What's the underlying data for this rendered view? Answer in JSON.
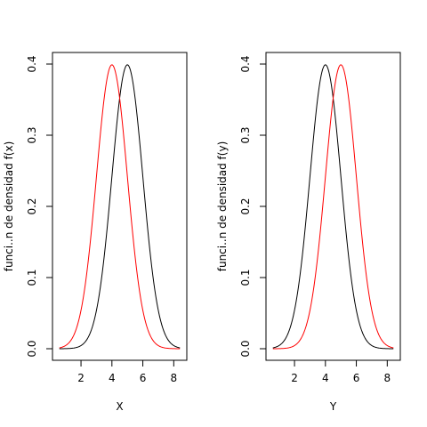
{
  "chart_data": [
    {
      "type": "line",
      "xlabel": "X",
      "ylabel": "funci..n de densidad f(x)",
      "xlim": [
        0.5,
        8.5
      ],
      "ylim": [
        0,
        0.4
      ],
      "xticks": [
        "2",
        "4",
        "6",
        "8"
      ],
      "yticks": [
        "0.0",
        "0.1",
        "0.2",
        "0.3",
        "0.4"
      ],
      "series": [
        {
          "color": "#000000",
          "mean": 5,
          "sd": 1,
          "x_range": [
            0.6,
            8.4
          ]
        },
        {
          "color": "#ff0000",
          "mean": 4,
          "sd": 1,
          "x_range": [
            0.6,
            8.4
          ]
        }
      ]
    },
    {
      "type": "line",
      "xlabel": "Y",
      "ylabel": "funci..n de densidad f(y)",
      "xlim": [
        0.5,
        8.5
      ],
      "ylim": [
        0,
        0.4
      ],
      "xticks": [
        "2",
        "4",
        "6",
        "8"
      ],
      "yticks": [
        "0.0",
        "0.1",
        "0.2",
        "0.3",
        "0.4"
      ],
      "series": [
        {
          "color": "#000000",
          "mean": 4,
          "sd": 1,
          "x_range": [
            0.6,
            8.4
          ]
        },
        {
          "color": "#ff0000",
          "mean": 5,
          "sd": 1,
          "x_range": [
            0.6,
            8.4
          ]
        }
      ]
    }
  ]
}
